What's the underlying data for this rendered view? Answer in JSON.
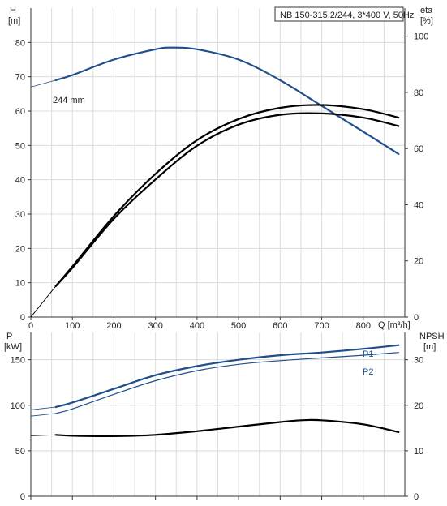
{
  "chart_data": [
    {
      "type": "line",
      "title": "NB 150-315.2/244, 3*400 V, 50Hz",
      "xlabel": "Q [m³/h]",
      "x_ticks": [
        0,
        100,
        200,
        300,
        400,
        500,
        600,
        700,
        800
      ],
      "x_tick_labels": [
        "0",
        "100",
        "200",
        "300",
        "400",
        "500",
        "600",
        "700",
        "800"
      ],
      "xlim": [
        0,
        900
      ],
      "grid": true,
      "left_axis": {
        "label": "H",
        "unit": "[m]",
        "ylim": [
          0,
          90
        ],
        "ticks": [
          0,
          10,
          20,
          30,
          40,
          50,
          60,
          70,
          80
        ],
        "tick_labels": [
          "0",
          "10",
          "20",
          "30",
          "40",
          "50",
          "60",
          "70",
          "80"
        ]
      },
      "right_axis": {
        "label": "eta",
        "unit": "[%]",
        "ylim": [
          0,
          110
        ],
        "ticks": [
          0,
          20,
          40,
          60,
          80,
          100
        ],
        "tick_labels": [
          "0",
          "20",
          "40",
          "60",
          "80",
          "100"
        ]
      },
      "series": [
        {
          "name": "244 mm",
          "axis": "left",
          "color": "#1f4e8c",
          "x": [
            60,
            100,
            200,
            300,
            340,
            400,
            500,
            600,
            700,
            800,
            885
          ],
          "y": [
            69,
            70.5,
            75,
            78,
            78.5,
            78,
            75,
            69,
            61.5,
            54,
            47.5
          ],
          "ext_x": [
            0,
            60
          ],
          "ext_y": [
            67,
            69
          ]
        },
        {
          "axis": "right",
          "color": "#000000",
          "x": [
            60,
            100,
            200,
            300,
            400,
            500,
            600,
            700,
            800,
            885
          ],
          "y": [
            11,
            18,
            36,
            51,
            63,
            70.5,
            74.5,
            75.5,
            74,
            71
          ],
          "ext_x": [
            0,
            60
          ],
          "ext_y": [
            0,
            11
          ]
        },
        {
          "axis": "right",
          "color": "#000000",
          "x": [
            60,
            100,
            200,
            300,
            400,
            500,
            600,
            700,
            800,
            885
          ],
          "y": [
            11,
            17.5,
            35,
            49,
            61,
            68.5,
            72,
            72.5,
            71,
            68
          ],
          "ext_x": [
            0,
            60
          ],
          "ext_y": [
            0,
            11
          ]
        }
      ]
    },
    {
      "type": "line",
      "xlim": [
        0,
        900
      ],
      "x_ticks": [
        0,
        100,
        200,
        300,
        400,
        500,
        600,
        700,
        800
      ],
      "grid": true,
      "left_axis": {
        "label": "P",
        "unit": "[kW]",
        "ylim": [
          0,
          180
        ],
        "ticks": [
          0,
          50,
          100,
          150
        ],
        "tick_labels": [
          "0",
          "50",
          "100",
          "150"
        ]
      },
      "right_axis": {
        "label": "NPSH",
        "unit": "[m]",
        "ylim": [
          0,
          36
        ],
        "ticks": [
          0,
          10,
          20,
          30
        ],
        "tick_labels": [
          "0",
          "10",
          "20",
          "30"
        ]
      },
      "series": [
        {
          "name": "P1",
          "axis": "left",
          "color": "#1f4e8c",
          "x": [
            60,
            100,
            200,
            300,
            400,
            500,
            600,
            700,
            800,
            885
          ],
          "y": [
            98,
            103,
            118,
            133,
            143,
            150,
            155,
            158,
            162,
            166
          ],
          "ext_x": [
            0,
            60
          ],
          "ext_y": [
            95,
            98
          ]
        },
        {
          "name": "P2",
          "axis": "left",
          "color": "#1f4e8c",
          "x": [
            60,
            100,
            200,
            300,
            400,
            500,
            600,
            700,
            800,
            885
          ],
          "y": [
            91,
            96,
            112,
            127,
            138,
            145,
            149,
            152,
            155,
            158
          ],
          "ext_x": [
            0,
            60
          ],
          "ext_y": [
            88,
            91
          ]
        },
        {
          "axis": "right",
          "color": "#000000",
          "x": [
            60,
            100,
            200,
            300,
            400,
            500,
            600,
            650,
            700,
            800,
            885
          ],
          "y": [
            13.5,
            13.3,
            13.2,
            13.5,
            14.3,
            15.3,
            16.3,
            16.7,
            16.7,
            15.8,
            14.1
          ],
          "ext_x": [
            0,
            60
          ],
          "ext_y": [
            13.3,
            13.5
          ]
        }
      ]
    }
  ]
}
